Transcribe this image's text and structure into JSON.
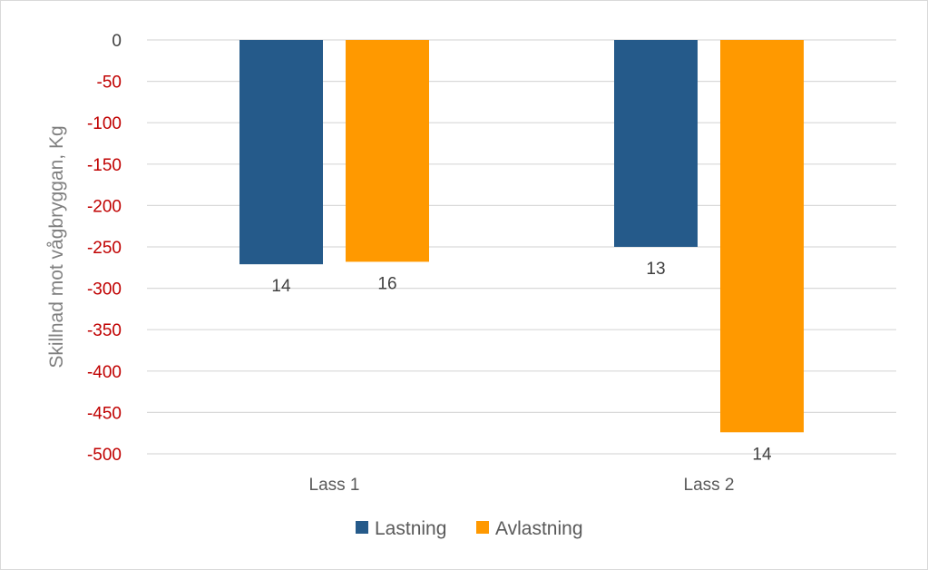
{
  "chart_data": {
    "type": "bar",
    "title": "",
    "xlabel": "",
    "ylabel": "Skillnad mot vågbryggan, Kg",
    "ylim": [
      -500,
      0
    ],
    "y_ticks": [
      0,
      -50,
      -100,
      -150,
      -200,
      -250,
      -300,
      -350,
      -400,
      -450,
      -500
    ],
    "y_tick_labels": [
      "0",
      "-50",
      "-100",
      "-150",
      "-200",
      "-250",
      "-300",
      "-350",
      "-400",
      "-450",
      "-500"
    ],
    "tick_colors": {
      "zero": "#404040",
      "negative": "#c00000"
    },
    "grid": true,
    "legend_position": "bottom",
    "categories": [
      "Lass 1",
      "Lass 2"
    ],
    "series": [
      {
        "name": "Lastning",
        "color": "#255a8a",
        "values": [
          -271,
          -250
        ],
        "data_labels": [
          "14",
          "13"
        ]
      },
      {
        "name": "Avlastning",
        "color": "#ff9900",
        "values": [
          -268,
          -474
        ],
        "data_labels": [
          "16",
          "14"
        ]
      }
    ]
  }
}
